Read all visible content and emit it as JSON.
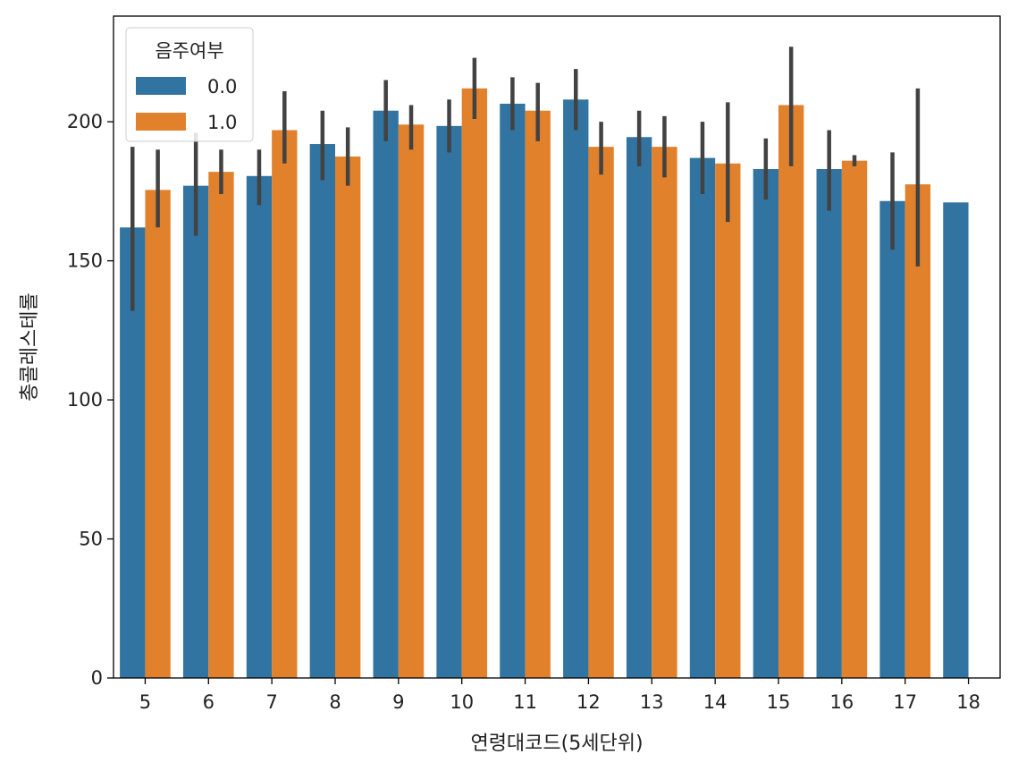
{
  "chart_data": {
    "type": "bar",
    "title": "",
    "xlabel": "연령대코드(5세단위)",
    "ylabel": "총콜레스테롤",
    "ylim": [
      0,
      238
    ],
    "yticks": [
      0,
      50,
      100,
      150,
      200
    ],
    "categories": [
      "5",
      "6",
      "7",
      "8",
      "9",
      "10",
      "11",
      "12",
      "13",
      "14",
      "15",
      "16",
      "17",
      "18"
    ],
    "legend": {
      "title": "음주여부",
      "placement": "top-left"
    },
    "grid": false,
    "series": [
      {
        "name": "0.0",
        "color": "#3274a1",
        "values": [
          162,
          177,
          180.5,
          192,
          204,
          198.5,
          206.5,
          208,
          194.5,
          187,
          183,
          183,
          171.5,
          171
        ],
        "ci_low": [
          132,
          159,
          170,
          179,
          193,
          189,
          197,
          197,
          184,
          174,
          172,
          168,
          154,
          null
        ],
        "ci_high": [
          191,
          196,
          190,
          204,
          215,
          208,
          216,
          219,
          204,
          200,
          194,
          197,
          189,
          null
        ]
      },
      {
        "name": "1.0",
        "color": "#e1812c",
        "values": [
          175.5,
          182,
          197,
          187.5,
          199,
          212,
          204,
          191,
          191,
          185,
          206,
          186,
          177.5,
          null
        ],
        "ci_low": [
          162,
          174,
          185,
          177,
          190,
          201,
          193,
          181,
          180,
          164,
          184,
          184,
          148,
          null
        ],
        "ci_high": [
          190,
          190,
          211,
          198,
          206,
          223,
          214,
          200,
          202,
          207,
          227,
          188,
          212,
          null
        ]
      }
    ],
    "errorbar_color": "#424242"
  }
}
